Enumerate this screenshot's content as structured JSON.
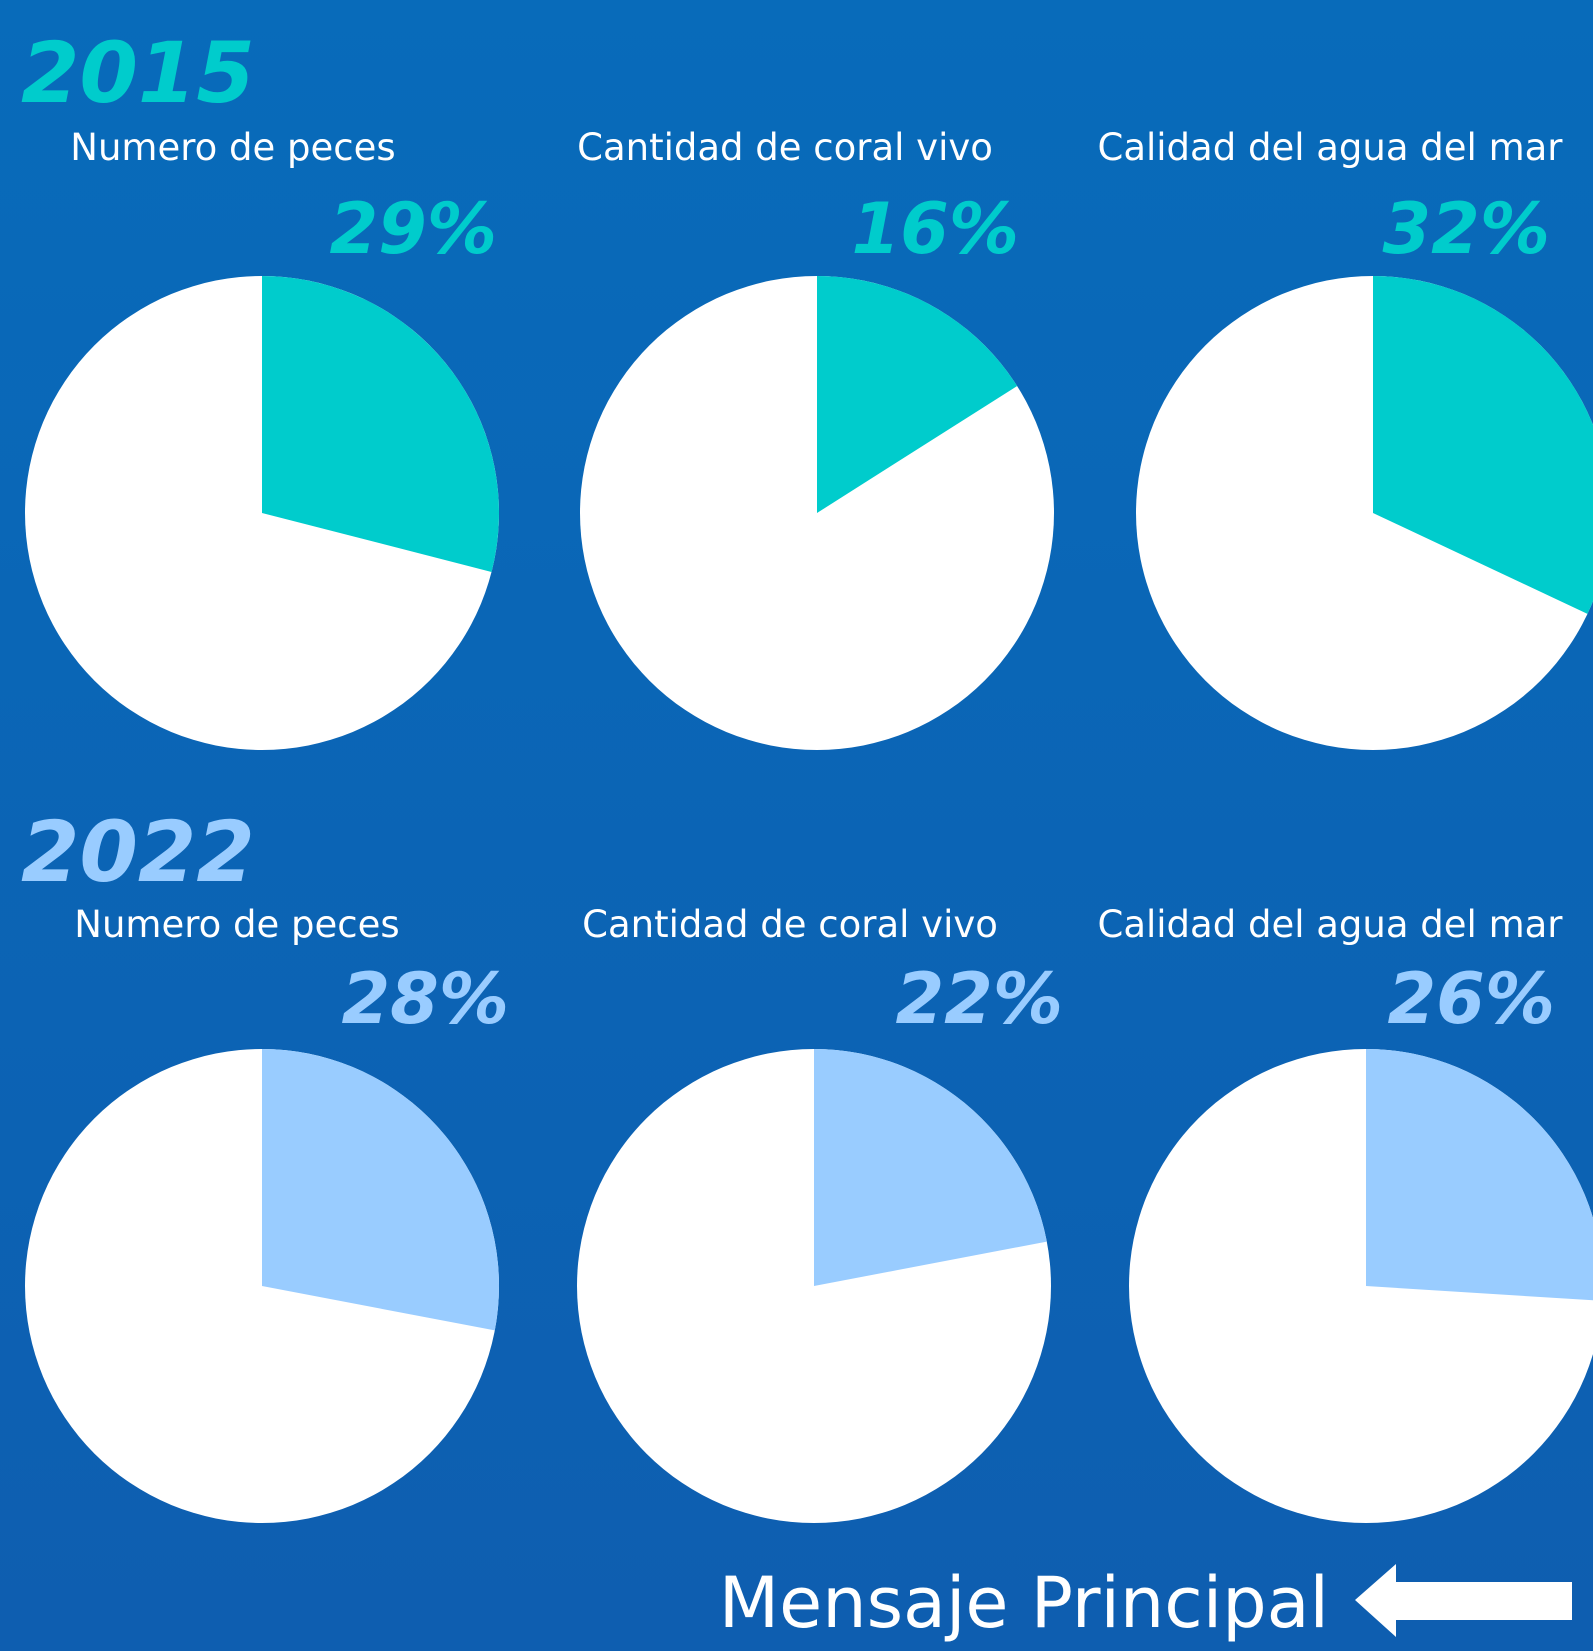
{
  "sections": [
    {
      "year": "2015",
      "color": "#00cccc",
      "charts": [
        {
          "type": "pie",
          "title": "Numero de peces",
          "values": [
            29
          ],
          "value_labels": [
            "29%"
          ]
        },
        {
          "type": "pie",
          "title": "Cantidad de coral vivo",
          "values": [
            16
          ],
          "value_labels": [
            "16%"
          ]
        },
        {
          "type": "pie",
          "title": "Calidad del agua del mar",
          "values": [
            32
          ],
          "value_labels": [
            "32%"
          ]
        }
      ]
    },
    {
      "year": "2022",
      "color": "#99ccff",
      "charts": [
        {
          "type": "pie",
          "title": "Numero de peces",
          "values": [
            28
          ],
          "value_labels": [
            "28%"
          ]
        },
        {
          "type": "pie",
          "title": "Cantidad de coral vivo",
          "values": [
            22
          ],
          "value_labels": [
            "22%"
          ]
        },
        {
          "type": "pie",
          "title": "Calidad del agua del mar",
          "values": [
            26
          ],
          "value_labels": [
            "26%"
          ]
        }
      ]
    }
  ],
  "footer": {
    "button": "Mensaje Principal"
  }
}
